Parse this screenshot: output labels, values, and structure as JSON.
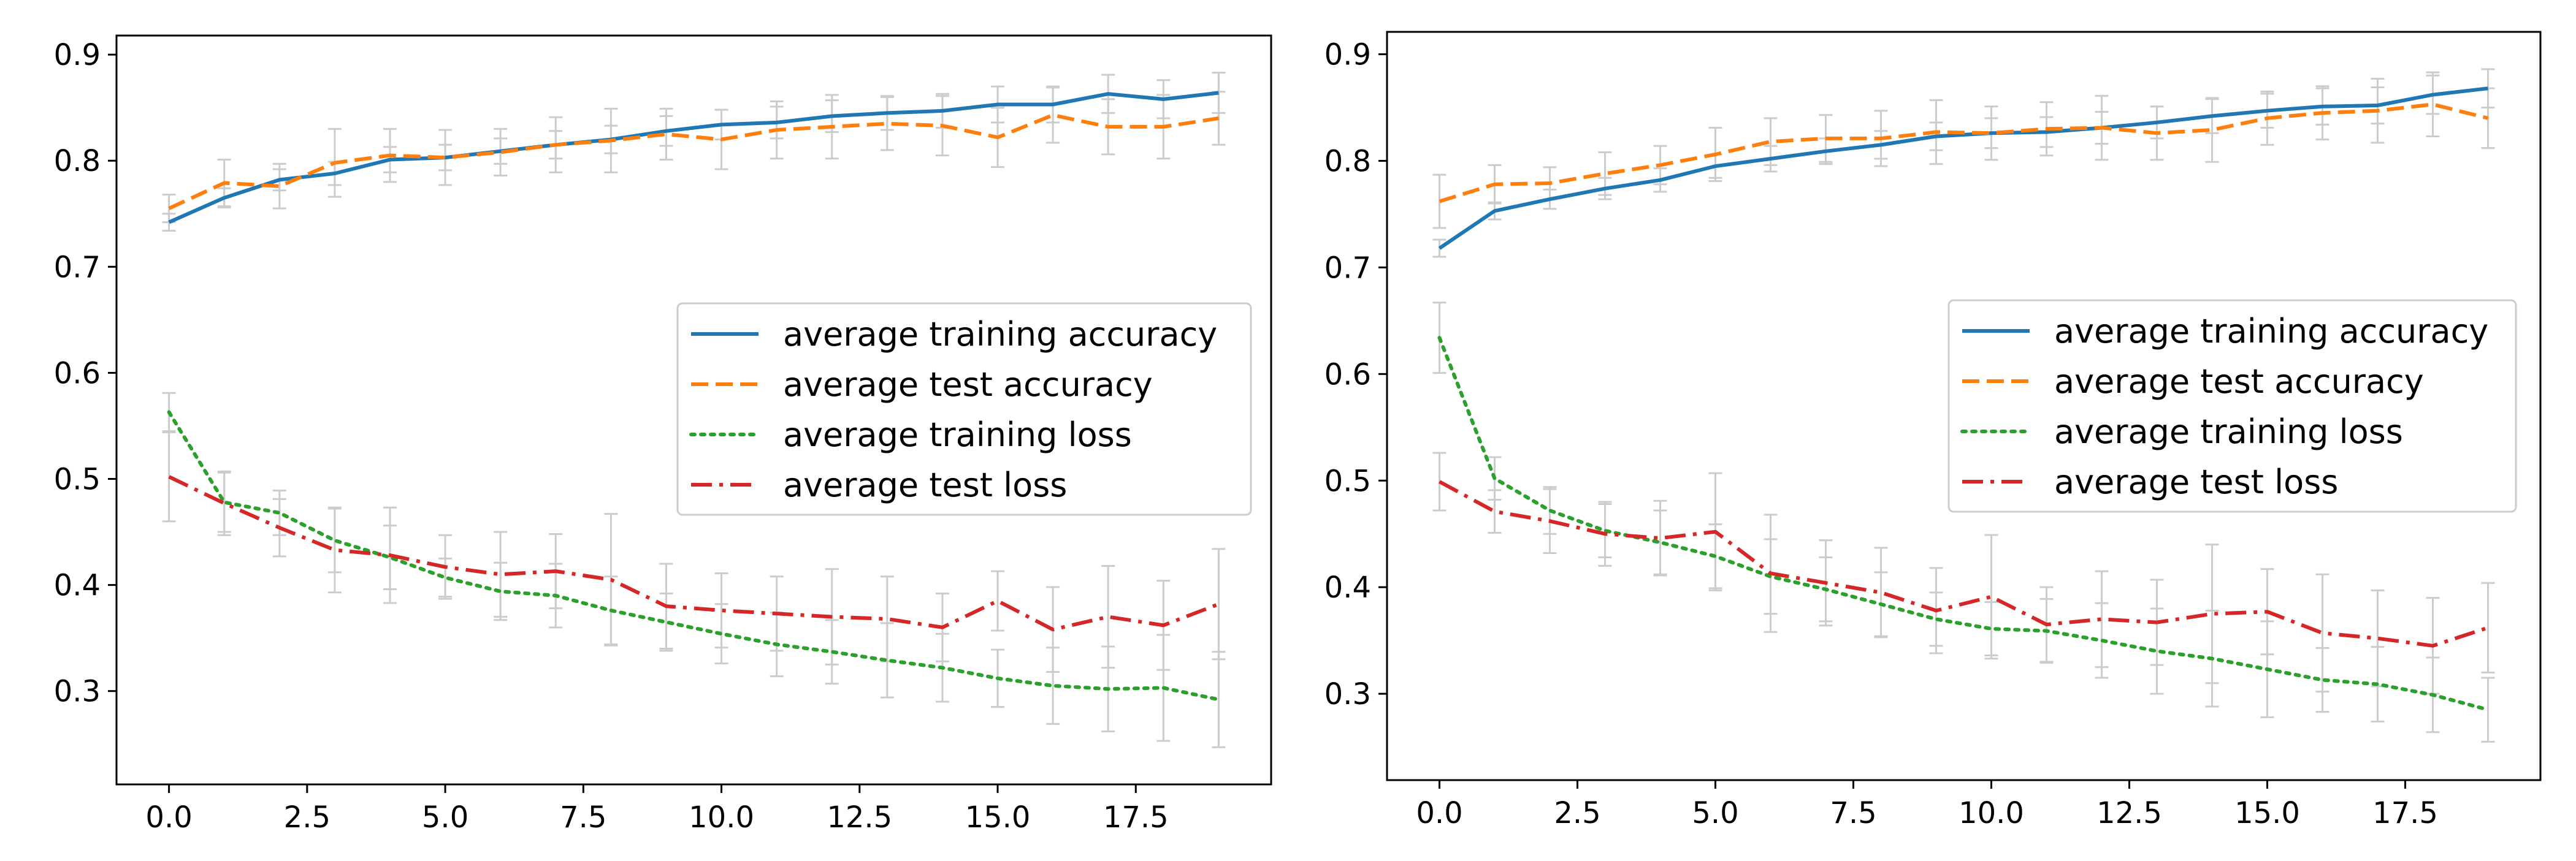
{
  "chart_data": [
    {
      "type": "line",
      "title": "",
      "xlabel": "",
      "ylabel": "",
      "xlim": [
        -0.95,
        19.95
      ],
      "ylim": [
        0.212,
        0.918
      ],
      "x_ticks": [
        0.0,
        2.5,
        5.0,
        7.5,
        10.0,
        12.5,
        15.0,
        17.5
      ],
      "x_tick_labels": [
        "0.0",
        "2.5",
        "5.0",
        "7.5",
        "10.0",
        "12.5",
        "15.0",
        "17.5"
      ],
      "y_ticks": [
        0.3,
        0.4,
        0.5,
        0.6,
        0.7,
        0.8,
        0.9
      ],
      "y_tick_labels": [
        "0.3",
        "0.4",
        "0.5",
        "0.6",
        "0.7",
        "0.8",
        "0.9"
      ],
      "grid": false,
      "legend_position": "center-right",
      "x": [
        0,
        1,
        2,
        3,
        4,
        5,
        6,
        7,
        8,
        9,
        10,
        11,
        12,
        13,
        14,
        15,
        16,
        17,
        18,
        19
      ],
      "series": [
        {
          "name": "average training accuracy",
          "color": "#1f77b4",
          "style": "solid",
          "values": [
            0.742,
            0.765,
            0.782,
            0.788,
            0.801,
            0.803,
            0.809,
            0.815,
            0.82,
            0.828,
            0.834,
            0.836,
            0.842,
            0.845,
            0.847,
            0.853,
            0.853,
            0.863,
            0.858,
            0.864
          ],
          "errors": [
            0.008,
            0.009,
            0.01,
            0.011,
            0.012,
            0.012,
            0.012,
            0.013,
            0.013,
            0.014,
            0.014,
            0.015,
            0.015,
            0.016,
            0.016,
            0.017,
            0.017,
            0.018,
            0.018,
            0.019
          ]
        },
        {
          "name": "average test accuracy",
          "color": "#ff7f0e",
          "style": "dashed",
          "values": [
            0.755,
            0.779,
            0.776,
            0.798,
            0.805,
            0.803,
            0.808,
            0.815,
            0.819,
            0.825,
            0.82,
            0.829,
            0.832,
            0.835,
            0.833,
            0.822,
            0.843,
            0.832,
            0.832,
            0.84
          ],
          "errors": [
            0.013,
            0.022,
            0.021,
            0.032,
            0.025,
            0.026,
            0.022,
            0.026,
            0.03,
            0.024,
            0.028,
            0.027,
            0.03,
            0.025,
            0.028,
            0.028,
            0.026,
            0.026,
            0.03,
            0.025
          ]
        },
        {
          "name": "average training loss",
          "color": "#2ca02c",
          "style": "dotted",
          "values": [
            0.563,
            0.478,
            0.468,
            0.442,
            0.426,
            0.407,
            0.394,
            0.39,
            0.376,
            0.365,
            0.354,
            0.344,
            0.337,
            0.329,
            0.322,
            0.312,
            0.305,
            0.302,
            0.303,
            0.292
          ],
          "errors": [
            0.018,
            0.028,
            0.021,
            0.03,
            0.03,
            0.018,
            0.027,
            0.03,
            0.032,
            0.027,
            0.028,
            0.03,
            0.03,
            0.035,
            0.032,
            0.027,
            0.036,
            0.04,
            0.05,
            0.045
          ]
        },
        {
          "name": "average test loss",
          "color": "#d62728",
          "style": "dashdot",
          "values": [
            0.502,
            0.477,
            0.454,
            0.433,
            0.428,
            0.417,
            0.41,
            0.413,
            0.405,
            0.38,
            0.376,
            0.373,
            0.37,
            0.368,
            0.36,
            0.385,
            0.358,
            0.37,
            0.362,
            0.382
          ],
          "errors": [
            0.042,
            0.03,
            0.027,
            0.04,
            0.045,
            0.03,
            0.04,
            0.035,
            0.062,
            0.04,
            0.035,
            0.035,
            0.045,
            0.04,
            0.032,
            0.028,
            0.04,
            0.048,
            0.042,
            0.052
          ]
        }
      ]
    },
    {
      "type": "line",
      "title": "",
      "xlabel": "",
      "ylabel": "",
      "xlim": [
        -0.95,
        19.95
      ],
      "ylim": [
        0.219,
        0.921
      ],
      "x_ticks": [
        0.0,
        2.5,
        5.0,
        7.5,
        10.0,
        12.5,
        15.0,
        17.5
      ],
      "x_tick_labels": [
        "0.0",
        "2.5",
        "5.0",
        "7.5",
        "10.0",
        "12.5",
        "15.0",
        "17.5"
      ],
      "y_ticks": [
        0.3,
        0.4,
        0.5,
        0.6,
        0.7,
        0.8,
        0.9
      ],
      "y_tick_labels": [
        "0.3",
        "0.4",
        "0.5",
        "0.6",
        "0.7",
        "0.8",
        "0.9"
      ],
      "grid": false,
      "legend_position": "center-right",
      "x": [
        0,
        1,
        2,
        3,
        4,
        5,
        6,
        7,
        8,
        9,
        10,
        11,
        12,
        13,
        14,
        15,
        16,
        17,
        18,
        19
      ],
      "series": [
        {
          "name": "average training accuracy",
          "color": "#1f77b4",
          "style": "solid",
          "values": [
            0.718,
            0.753,
            0.764,
            0.774,
            0.782,
            0.795,
            0.802,
            0.809,
            0.815,
            0.823,
            0.826,
            0.827,
            0.831,
            0.836,
            0.842,
            0.847,
            0.851,
            0.852,
            0.862,
            0.868
          ],
          "errors": [
            0.008,
            0.008,
            0.009,
            0.01,
            0.011,
            0.011,
            0.012,
            0.012,
            0.013,
            0.013,
            0.014,
            0.014,
            0.015,
            0.015,
            0.016,
            0.016,
            0.017,
            0.017,
            0.018,
            0.018
          ]
        },
        {
          "name": "average test accuracy",
          "color": "#ff7f0e",
          "style": "dashed",
          "values": [
            0.762,
            0.778,
            0.779,
            0.788,
            0.796,
            0.806,
            0.818,
            0.821,
            0.821,
            0.827,
            0.826,
            0.83,
            0.831,
            0.826,
            0.829,
            0.84,
            0.845,
            0.847,
            0.853,
            0.84
          ],
          "errors": [
            0.025,
            0.018,
            0.015,
            0.02,
            0.018,
            0.025,
            0.022,
            0.022,
            0.026,
            0.03,
            0.025,
            0.025,
            0.03,
            0.025,
            0.03,
            0.025,
            0.025,
            0.03,
            0.03,
            0.028
          ]
        },
        {
          "name": "average training loss",
          "color": "#2ca02c",
          "style": "dotted",
          "values": [
            0.634,
            0.502,
            0.472,
            0.453,
            0.442,
            0.429,
            0.41,
            0.398,
            0.384,
            0.37,
            0.361,
            0.359,
            0.35,
            0.34,
            0.333,
            0.323,
            0.313,
            0.309,
            0.299,
            0.285
          ],
          "errors": [
            0.033,
            0.02,
            0.022,
            0.025,
            0.03,
            0.03,
            0.035,
            0.03,
            0.03,
            0.025,
            0.025,
            0.03,
            0.035,
            0.04,
            0.045,
            0.045,
            0.03,
            0.035,
            0.035,
            0.03
          ]
        },
        {
          "name": "average test loss",
          "color": "#d62728",
          "style": "dashdot",
          "values": [
            0.499,
            0.471,
            0.462,
            0.45,
            0.446,
            0.452,
            0.413,
            0.404,
            0.395,
            0.378,
            0.391,
            0.365,
            0.37,
            0.367,
            0.375,
            0.377,
            0.357,
            0.352,
            0.345,
            0.362
          ],
          "errors": [
            0.027,
            0.02,
            0.03,
            0.03,
            0.035,
            0.055,
            0.055,
            0.04,
            0.042,
            0.04,
            0.058,
            0.035,
            0.045,
            0.04,
            0.065,
            0.04,
            0.055,
            0.045,
            0.045,
            0.042
          ]
        }
      ]
    }
  ]
}
